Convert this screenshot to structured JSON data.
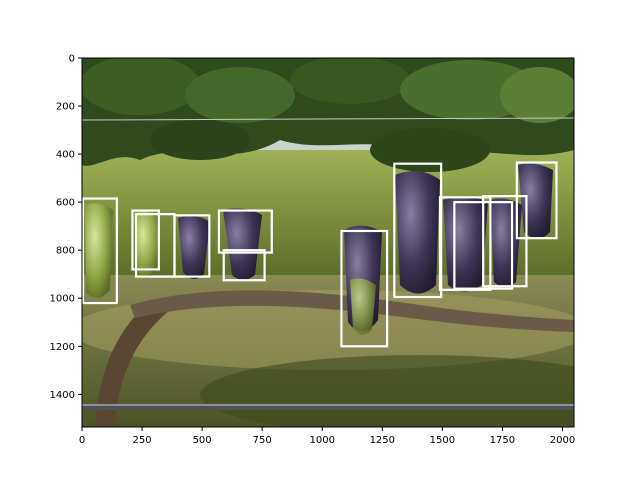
{
  "chart_data": {
    "type": "image-with-annotations",
    "title": "",
    "xlabel": "",
    "ylabel": "",
    "xlim": [
      0,
      2048
    ],
    "ylim": [
      1536,
      0
    ],
    "x_ticks": [
      0,
      250,
      500,
      750,
      1000,
      1250,
      1500,
      1750,
      2000
    ],
    "y_ticks": [
      0,
      200,
      400,
      600,
      800,
      1000,
      1200,
      1400
    ],
    "box_color": "#ffffff",
    "boxes": [
      {
        "x0": 0,
        "y0": 585,
        "x1": 145,
        "y1": 1020
      },
      {
        "x0": 210,
        "y0": 635,
        "x1": 320,
        "y1": 880
      },
      {
        "x0": 225,
        "y0": 650,
        "x1": 385,
        "y1": 910
      },
      {
        "x0": 385,
        "y0": 655,
        "x1": 530,
        "y1": 910
      },
      {
        "x0": 570,
        "y0": 635,
        "x1": 790,
        "y1": 810
      },
      {
        "x0": 590,
        "y0": 800,
        "x1": 760,
        "y1": 925
      },
      {
        "x0": 1080,
        "y0": 720,
        "x1": 1270,
        "y1": 1200
      },
      {
        "x0": 1300,
        "y0": 440,
        "x1": 1495,
        "y1": 995
      },
      {
        "x0": 1490,
        "y0": 580,
        "x1": 1700,
        "y1": 965
      },
      {
        "x0": 1550,
        "y0": 600,
        "x1": 1790,
        "y1": 960
      },
      {
        "x0": 1670,
        "y0": 575,
        "x1": 1850,
        "y1": 950
      },
      {
        "x0": 1810,
        "y0": 435,
        "x1": 1975,
        "y1": 750
      }
    ]
  }
}
